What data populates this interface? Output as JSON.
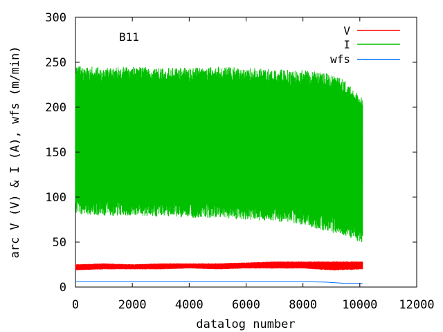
{
  "chart_data": {
    "type": "line",
    "title": "",
    "annotation": "B11",
    "xlabel": "datalog number",
    "ylabel": "arc V (V) & I (A), wfs (m/min)",
    "xlim": [
      0,
      12000
    ],
    "ylim": [
      0,
      300
    ],
    "x_ticks": [
      "0",
      "2000",
      "4000",
      "6000",
      "8000",
      "10000",
      "12000"
    ],
    "y_ticks": [
      "0",
      "50",
      "100",
      "150",
      "200",
      "250",
      "300"
    ],
    "x_tick_values": [
      0,
      2000,
      4000,
      6000,
      8000,
      10000,
      12000
    ],
    "y_tick_values": [
      0,
      50,
      100,
      150,
      200,
      250,
      300
    ],
    "grid": false,
    "legend_position": "top-right",
    "series": [
      {
        "name": "V",
        "color": "#ff0000",
        "x": [
          0,
          1000,
          2000,
          3000,
          4000,
          5000,
          6000,
          7000,
          8000,
          9000,
          10100
        ],
        "y_low": [
          19,
          20,
          20,
          20,
          21,
          20,
          21,
          21,
          21,
          19,
          20
        ],
        "y_high": [
          25,
          26,
          25,
          26,
          26,
          26,
          27,
          28,
          28,
          28,
          28
        ]
      },
      {
        "name": "I",
        "color": "#00c000",
        "x": [
          0,
          1000,
          2000,
          3000,
          4000,
          5000,
          6000,
          7000,
          8000,
          8500,
          9000,
          9500,
          10000,
          10100
        ],
        "y_low": [
          90,
          88,
          88,
          87,
          86,
          86,
          84,
          82,
          78,
          74,
          70,
          66,
          58,
          57
        ],
        "y_high": [
          237,
          236,
          236,
          235,
          235,
          236,
          235,
          233,
          232,
          230,
          228,
          220,
          205,
          200
        ]
      },
      {
        "name": "wfs",
        "color": "#0070ff",
        "x": [
          0,
          2000,
          4000,
          6000,
          8000,
          8800,
          9500,
          10100
        ],
        "y": [
          6,
          6,
          6,
          6,
          6,
          5.5,
          4,
          4
        ]
      }
    ]
  }
}
